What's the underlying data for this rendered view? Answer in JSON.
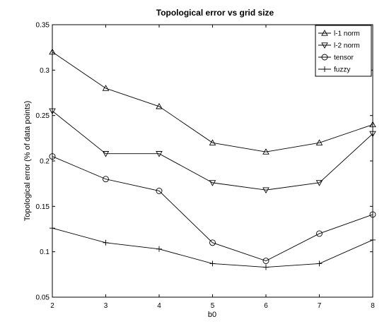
{
  "chart_data": {
    "type": "line",
    "title": "Topological error vs grid size",
    "xlabel": "b0",
    "ylabel": "Topological error (% of data points)",
    "xlim": [
      2,
      8
    ],
    "ylim": [
      0.05,
      0.35
    ],
    "xticks": [
      "2",
      "3",
      "4",
      "5",
      "6",
      "7",
      "8"
    ],
    "yticks": [
      "0.05",
      "0.1",
      "0.15",
      "0.2",
      "0.25",
      "0.3",
      "0.35"
    ],
    "x": [
      2,
      3,
      4,
      5,
      6,
      7,
      8
    ],
    "grid": false,
    "legend_position": "top-right",
    "series": [
      {
        "name": "l-1 norm",
        "marker": "triangle-up",
        "values": [
          0.32,
          0.28,
          0.26,
          0.22,
          0.21,
          0.22,
          0.24
        ]
      },
      {
        "name": "l-2 norm",
        "marker": "triangle-down",
        "values": [
          0.255,
          0.208,
          0.208,
          0.176,
          0.168,
          0.176,
          0.23
        ]
      },
      {
        "name": "tensor",
        "marker": "circle",
        "values": [
          0.205,
          0.18,
          0.167,
          0.11,
          0.09,
          0.12,
          0.141
        ]
      },
      {
        "name": "fuzzy",
        "marker": "plus",
        "values": [
          0.126,
          0.11,
          0.103,
          0.087,
          0.083,
          0.087,
          0.113
        ]
      }
    ]
  }
}
